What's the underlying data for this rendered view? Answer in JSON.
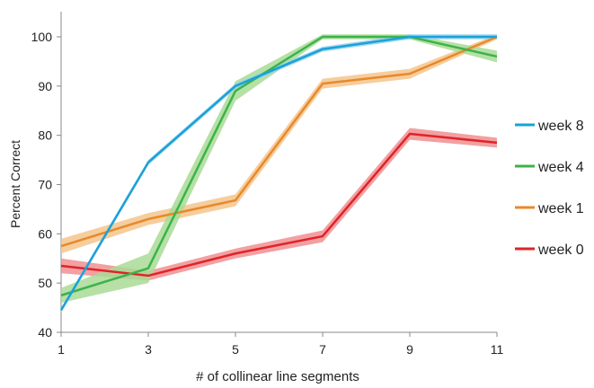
{
  "chart_data": {
    "type": "line",
    "title": "",
    "xlabel": "# of collinear line segments",
    "ylabel": "Percent Correct",
    "x": [
      1,
      3,
      5,
      7,
      9,
      11
    ],
    "xlim": [
      1,
      11
    ],
    "ylim": [
      40,
      100
    ],
    "xticks": [
      "1",
      "3",
      "5",
      "7",
      "9",
      "11"
    ],
    "yticks": [
      "40",
      "50",
      "60",
      "70",
      "80",
      "90",
      "100"
    ],
    "grid": false,
    "legend_position": "right",
    "series": [
      {
        "name": "week 8",
        "color": "#1ba1d8",
        "band_color": "#8fd0ee",
        "values": [
          44.5,
          74.5,
          90,
          97.5,
          100,
          100
        ],
        "error": [
          0.5,
          0.5,
          0.5,
          0.5,
          0.5,
          0.5
        ]
      },
      {
        "name": "week 4",
        "color": "#3bb34a",
        "band_color": "#a9db97",
        "values": [
          47.5,
          53,
          89,
          100,
          100,
          96
        ],
        "error": [
          1.5,
          3,
          2,
          0.5,
          0.5,
          1.2
        ]
      },
      {
        "name": "week 1",
        "color": "#e8892a",
        "band_color": "#f5c48c",
        "values": [
          57.5,
          63,
          66.8,
          90.5,
          92.5,
          100
        ],
        "error": [
          1.5,
          1.2,
          1.2,
          1,
          1,
          0.5
        ]
      },
      {
        "name": "week 0",
        "color": "#e02328",
        "band_color": "#f08f92",
        "values": [
          53.5,
          51.5,
          56,
          59.5,
          80.3,
          78.5
        ],
        "error": [
          1.5,
          1,
          1,
          1.2,
          1.2,
          1
        ]
      }
    ]
  }
}
